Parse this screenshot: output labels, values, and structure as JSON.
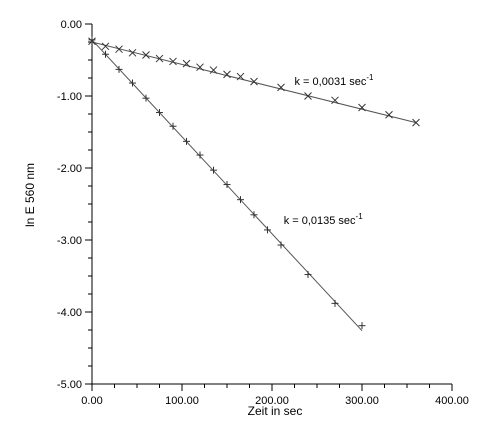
{
  "chart_data": {
    "type": "scatter",
    "xlabel": "Zeit in sec",
    "ylabel": "ln E 560 nm",
    "xlim": [
      0,
      400
    ],
    "ylim": [
      -5,
      0
    ],
    "x_ticks": [
      "0.00",
      "100.00",
      "200.00",
      "300.00",
      "400.00"
    ],
    "y_ticks": [
      "0.00",
      "-1.00",
      "-2.00",
      "-3.00",
      "-4.00",
      "-5.00"
    ],
    "grid": false,
    "legend": "none",
    "series": [
      {
        "marker": "x",
        "fit": {
          "x0": 0,
          "y0": -0.25,
          "x1": 360,
          "y1": -1.37
        },
        "x": [
          0,
          15,
          30,
          45,
          60,
          75,
          90,
          105,
          120,
          135,
          150,
          165,
          180,
          210,
          240,
          270,
          300,
          330,
          360
        ],
        "y": [
          -0.24,
          -0.31,
          -0.35,
          -0.4,
          -0.43,
          -0.48,
          -0.52,
          -0.55,
          -0.6,
          -0.64,
          -0.7,
          -0.73,
          -0.8,
          -0.88,
          -1.0,
          -1.06,
          -1.16,
          -1.26,
          -1.37
        ],
        "annotation": {
          "text": "k = 0,0031 sec",
          "sup": "-1",
          "at_x": 225,
          "at_y": -0.85
        }
      },
      {
        "marker": "+",
        "fit": {
          "x0": 0,
          "y0": -0.22,
          "x1": 300,
          "y1": -4.26
        },
        "x": [
          0,
          15,
          30,
          45,
          60,
          75,
          90,
          105,
          120,
          135,
          150,
          165,
          180,
          195,
          210,
          240,
          270,
          300
        ],
        "y": [
          -0.22,
          -0.42,
          -0.63,
          -0.82,
          -1.03,
          -1.23,
          -1.42,
          -1.63,
          -1.82,
          -2.03,
          -2.23,
          -2.44,
          -2.65,
          -2.86,
          -3.07,
          -3.48,
          -3.88,
          -4.19
        ],
        "annotation": {
          "text": "k = 0,0135 sec",
          "sup": "-1",
          "at_x": 213,
          "at_y": -2.78
        }
      }
    ]
  }
}
